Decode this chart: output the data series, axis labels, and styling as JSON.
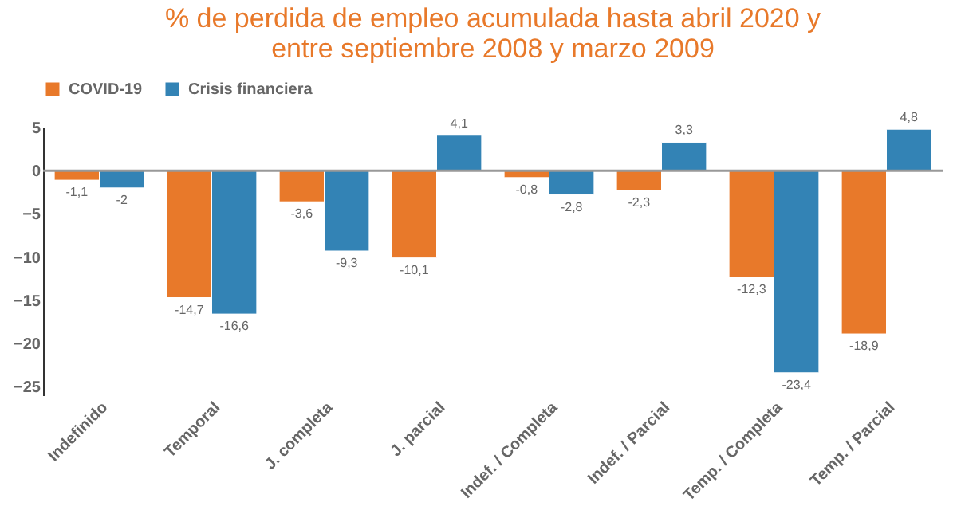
{
  "chart_data": {
    "type": "bar",
    "title": [
      "% de perdida  de empleo acumulada hasta abril 2020 y",
      "entre septiembre 2008 y marzo 2009"
    ],
    "categories": [
      "Indefinido",
      "Temporal",
      "J. completa",
      "J. parcial",
      "Indef. / Completa",
      "Indef. / Parcial",
      "Temp. / Completa",
      "Temp. / Parcial"
    ],
    "series": [
      {
        "name": "COVID-19",
        "color": "#e8792a",
        "values": [
          -1.1,
          -14.7,
          -3.6,
          -10.1,
          -0.8,
          -2.3,
          -12.3,
          -18.9
        ],
        "value_labels": [
          "-1,1",
          "-14,7",
          "-3,6",
          "-10,1",
          "-0,8",
          "-2,3",
          "-12,3",
          "-18,9"
        ]
      },
      {
        "name": "Crisis financiera",
        "color": "#3383b5",
        "values": [
          -2,
          -16.6,
          -9.3,
          4.1,
          -2.8,
          3.3,
          -23.4,
          4.8
        ],
        "value_labels": [
          "-2",
          "-16,6",
          "-9,3",
          "4,1",
          "-2,8",
          "3,3",
          "-23,4",
          "4,8"
        ]
      }
    ],
    "ylim": [
      -26,
      5
    ],
    "yticks": [
      5,
      0,
      -5,
      -10,
      -15,
      -20,
      -25
    ],
    "grid": false,
    "legend": "top left",
    "ref_lines": [
      {
        "axis": "y",
        "value": 0,
        "color": "#999999"
      }
    ]
  }
}
